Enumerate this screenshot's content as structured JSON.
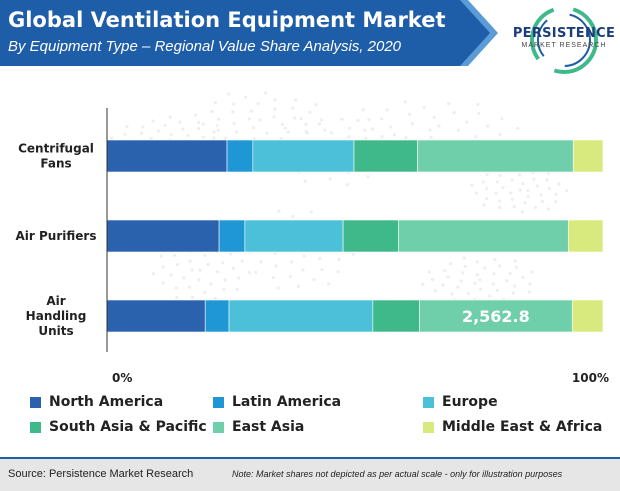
{
  "header": {
    "title": "Global Ventilation Equipment Market",
    "subtitle": "By Equipment Type – Regional Value Share Analysis, 2020"
  },
  "logo": {
    "name": "PERSISTENCE",
    "tagline": "MARKET RESEARCH"
  },
  "colors": {
    "header_bg": "#1e5da7",
    "header_accent": "#5b9bd8",
    "North America": "#2a62ad",
    "Latin America": "#1f96d6",
    "Europe": "#4cc0d8",
    "South Asia & Pacific": "#3fb98a",
    "East Asia": "#6fcfab",
    "Middle East & Africa": "#d8ea7e"
  },
  "chart_data": {
    "type": "bar",
    "orientation": "horizontal",
    "stacked": true,
    "categories": [
      "Centrifugal Fans",
      "Air Purifiers",
      "Air Handling Units"
    ],
    "category_lines": [
      [
        "Centrifugal",
        "Fans"
      ],
      [
        "Air Purifiers"
      ],
      [
        "Air",
        "Handling",
        "Units"
      ]
    ],
    "series": [
      {
        "name": "North America",
        "values": [
          24.2,
          22.6,
          19.8
        ]
      },
      {
        "name": "Latin America",
        "values": [
          5.2,
          5.2,
          4.8
        ]
      },
      {
        "name": "Europe",
        "values": [
          20.4,
          19.8,
          29.0
        ]
      },
      {
        "name": "South Asia & Pacific",
        "values": [
          12.8,
          11.2,
          9.4
        ]
      },
      {
        "name": "East Asia",
        "values": [
          31.4,
          34.2,
          30.8
        ]
      },
      {
        "name": "Middle East & Africa",
        "values": [
          6.0,
          7.0,
          6.2
        ]
      }
    ],
    "annotations": [
      {
        "category": "Air Handling Units",
        "series": "East Asia",
        "text": "2,562.8"
      }
    ],
    "xlim": [
      0,
      100
    ],
    "xtick_labels": [
      "0%",
      "100%"
    ],
    "legend_position": "bottom"
  },
  "footer": {
    "source": "Source: Persistence Market Research",
    "note": "Note: Market shares not depicted as per actual scale - only for illustration purposes"
  }
}
